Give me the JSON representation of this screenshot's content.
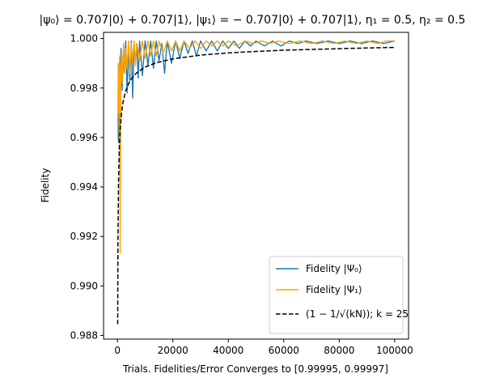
{
  "chart_data": {
    "type": "line",
    "title": "|ψ₀⟩ = 0.707|0⟩ + 0.707|1⟩, |ψ₁⟩ = − 0.707|0⟩ + 0.707|1⟩, η₁ = 0.5, η₂ = 0.5",
    "xlabel": "Trials. Fidelities/Error Converges to [0.99995, 0.99997]",
    "ylabel": "Fidelity",
    "xlim": [
      -5000,
      105000
    ],
    "ylim": [
      0.98785,
      1.00025
    ],
    "xticks": [
      {
        "value": 0,
        "label": "0"
      },
      {
        "value": 20000,
        "label": "20000"
      },
      {
        "value": 40000,
        "label": "40000"
      },
      {
        "value": 60000,
        "label": "60000"
      },
      {
        "value": 80000,
        "label": "80000"
      },
      {
        "value": 100000,
        "label": "100000"
      }
    ],
    "yticks": [
      {
        "value": 0.988,
        "label": "0.988"
      },
      {
        "value": 0.99,
        "label": "0.990"
      },
      {
        "value": 0.992,
        "label": "0.992"
      },
      {
        "value": 0.994,
        "label": "0.994"
      },
      {
        "value": 0.996,
        "label": "0.996"
      },
      {
        "value": 0.998,
        "label": "0.998"
      },
      {
        "value": 1.0,
        "label": "1.000"
      }
    ],
    "grid": false,
    "legend_position": "bottom-right",
    "series": [
      {
        "name": "Fidelity |Ψ₀⟩",
        "color": "#1f77b4",
        "style": "solid",
        "points": [
          [
            100,
            0.9968
          ],
          [
            400,
            0.9958
          ],
          [
            700,
            0.999
          ],
          [
            1000,
            0.9981
          ],
          [
            1300,
            0.9996
          ],
          [
            1700,
            0.9979
          ],
          [
            2000,
            0.9993
          ],
          [
            2500,
            0.9986
          ],
          [
            3000,
            0.9999
          ],
          [
            3500,
            0.9978
          ],
          [
            4000,
            0.9997
          ],
          [
            4500,
            0.9983
          ],
          [
            5000,
            0.9999
          ],
          [
            5500,
            0.9976
          ],
          [
            6000,
            0.9998
          ],
          [
            6500,
            0.999
          ],
          [
            7000,
            0.9998
          ],
          [
            7500,
            0.9984
          ],
          [
            8000,
            0.9999
          ],
          [
            9000,
            0.9985
          ],
          [
            10000,
            0.9999
          ],
          [
            11000,
            0.9989
          ],
          [
            12000,
            0.9999
          ],
          [
            13000,
            0.9988
          ],
          [
            14000,
            0.9999
          ],
          [
            15000,
            0.9991
          ],
          [
            16000,
            0.9998
          ],
          [
            17000,
            0.9986
          ],
          [
            18000,
            0.9999
          ],
          [
            19500,
            0.999
          ],
          [
            21000,
            0.9999
          ],
          [
            22500,
            0.9992
          ],
          [
            24000,
            0.9999
          ],
          [
            25500,
            0.9994
          ],
          [
            27000,
            0.9999
          ],
          [
            28500,
            0.9993
          ],
          [
            30000,
            0.9999
          ],
          [
            32000,
            0.9995
          ],
          [
            34000,
            0.9999
          ],
          [
            36000,
            0.9995
          ],
          [
            38000,
            0.9999
          ],
          [
            40000,
            0.9996
          ],
          [
            42000,
            0.9999
          ],
          [
            44000,
            0.9996
          ],
          [
            46000,
            0.9999
          ],
          [
            48000,
            0.9997
          ],
          [
            50000,
            0.9999
          ],
          [
            53000,
            0.9997
          ],
          [
            56000,
            0.9999
          ],
          [
            59000,
            0.9997
          ],
          [
            62000,
            0.9999
          ],
          [
            65000,
            0.9998
          ],
          [
            68000,
            0.9999
          ],
          [
            72000,
            0.9998
          ],
          [
            76000,
            0.9999
          ],
          [
            80000,
            0.9998
          ],
          [
            84000,
            0.9999
          ],
          [
            88000,
            0.9998
          ],
          [
            92000,
            0.9999
          ],
          [
            96000,
            0.9998
          ],
          [
            100000,
            0.9999
          ]
        ]
      },
      {
        "name": "Fidelity |Ψ₁⟩",
        "color": "#ffa500",
        "style": "solid",
        "points": [
          [
            100,
            0.996
          ],
          [
            300,
            0.999
          ],
          [
            500,
            0.997
          ],
          [
            800,
            0.9993
          ],
          [
            1000,
            0.9913
          ],
          [
            1200,
            0.9985
          ],
          [
            1500,
            0.9994
          ],
          [
            1800,
            0.9982
          ],
          [
            2200,
            0.9998
          ],
          [
            2600,
            0.9986
          ],
          [
            3000,
            0.9996
          ],
          [
            3500,
            0.9988
          ],
          [
            4000,
            0.9999
          ],
          [
            4500,
            0.9986
          ],
          [
            5000,
            0.9998
          ],
          [
            5500,
            0.999
          ],
          [
            6000,
            0.9999
          ],
          [
            6500,
            0.9989
          ],
          [
            7000,
            0.9998
          ],
          [
            8000,
            0.9991
          ],
          [
            9000,
            0.9999
          ],
          [
            10000,
            0.9992
          ],
          [
            11000,
            0.9999
          ],
          [
            12000,
            0.9993
          ],
          [
            13000,
            0.9999
          ],
          [
            14000,
            0.9993
          ],
          [
            15000,
            0.9999
          ],
          [
            16500,
            0.9994
          ],
          [
            18000,
            0.9999
          ],
          [
            19500,
            0.9995
          ],
          [
            21000,
            0.9999
          ],
          [
            22500,
            0.9995
          ],
          [
            24000,
            0.9999
          ],
          [
            26000,
            0.9996
          ],
          [
            28000,
            0.9999
          ],
          [
            30000,
            0.9996
          ],
          [
            32000,
            0.9999
          ],
          [
            34000,
            0.9997
          ],
          [
            36000,
            0.9999
          ],
          [
            38000,
            0.9997
          ],
          [
            40000,
            0.9999
          ],
          [
            43000,
            0.9997
          ],
          [
            46000,
            0.9999
          ],
          [
            49000,
            0.9998
          ],
          [
            52000,
            0.9999
          ],
          [
            55000,
            0.9998
          ],
          [
            58000,
            0.9999
          ],
          [
            62000,
            0.9998
          ],
          [
            66000,
            0.9999
          ],
          [
            70000,
            0.9998
          ],
          [
            74000,
            0.9999
          ],
          [
            78000,
            0.9998
          ],
          [
            82000,
            0.9999
          ],
          [
            86000,
            0.9998
          ],
          [
            90000,
            0.9999
          ],
          [
            94000,
            0.9998
          ],
          [
            97000,
            0.9999
          ],
          [
            100000,
            0.9999
          ]
        ]
      },
      {
        "name": "(1 − 1/√(kN)); k = 25",
        "color": "#000000",
        "style": "dashed",
        "points": [
          [
            100,
            0.98845
          ],
          [
            200,
            0.99184
          ],
          [
            400,
            0.99423
          ],
          [
            700,
            0.99564
          ],
          [
            1000,
            0.99635
          ],
          [
            1500,
            0.99702
          ],
          [
            2000,
            0.99742
          ],
          [
            3000,
            0.99789
          ],
          [
            4000,
            0.99817
          ],
          [
            5000,
            0.99837
          ],
          [
            7000,
            0.99862
          ],
          [
            10000,
            0.99885
          ],
          [
            14000,
            0.99902
          ],
          [
            20000,
            0.99918
          ],
          [
            30000,
            0.99933
          ],
          [
            40000,
            0.99942
          ],
          [
            50000,
            0.99948
          ],
          [
            60000,
            0.99953
          ],
          [
            70000,
            0.99956
          ],
          [
            80000,
            0.99959
          ],
          [
            90000,
            0.99962
          ],
          [
            100000,
            0.99964
          ]
        ]
      }
    ]
  }
}
